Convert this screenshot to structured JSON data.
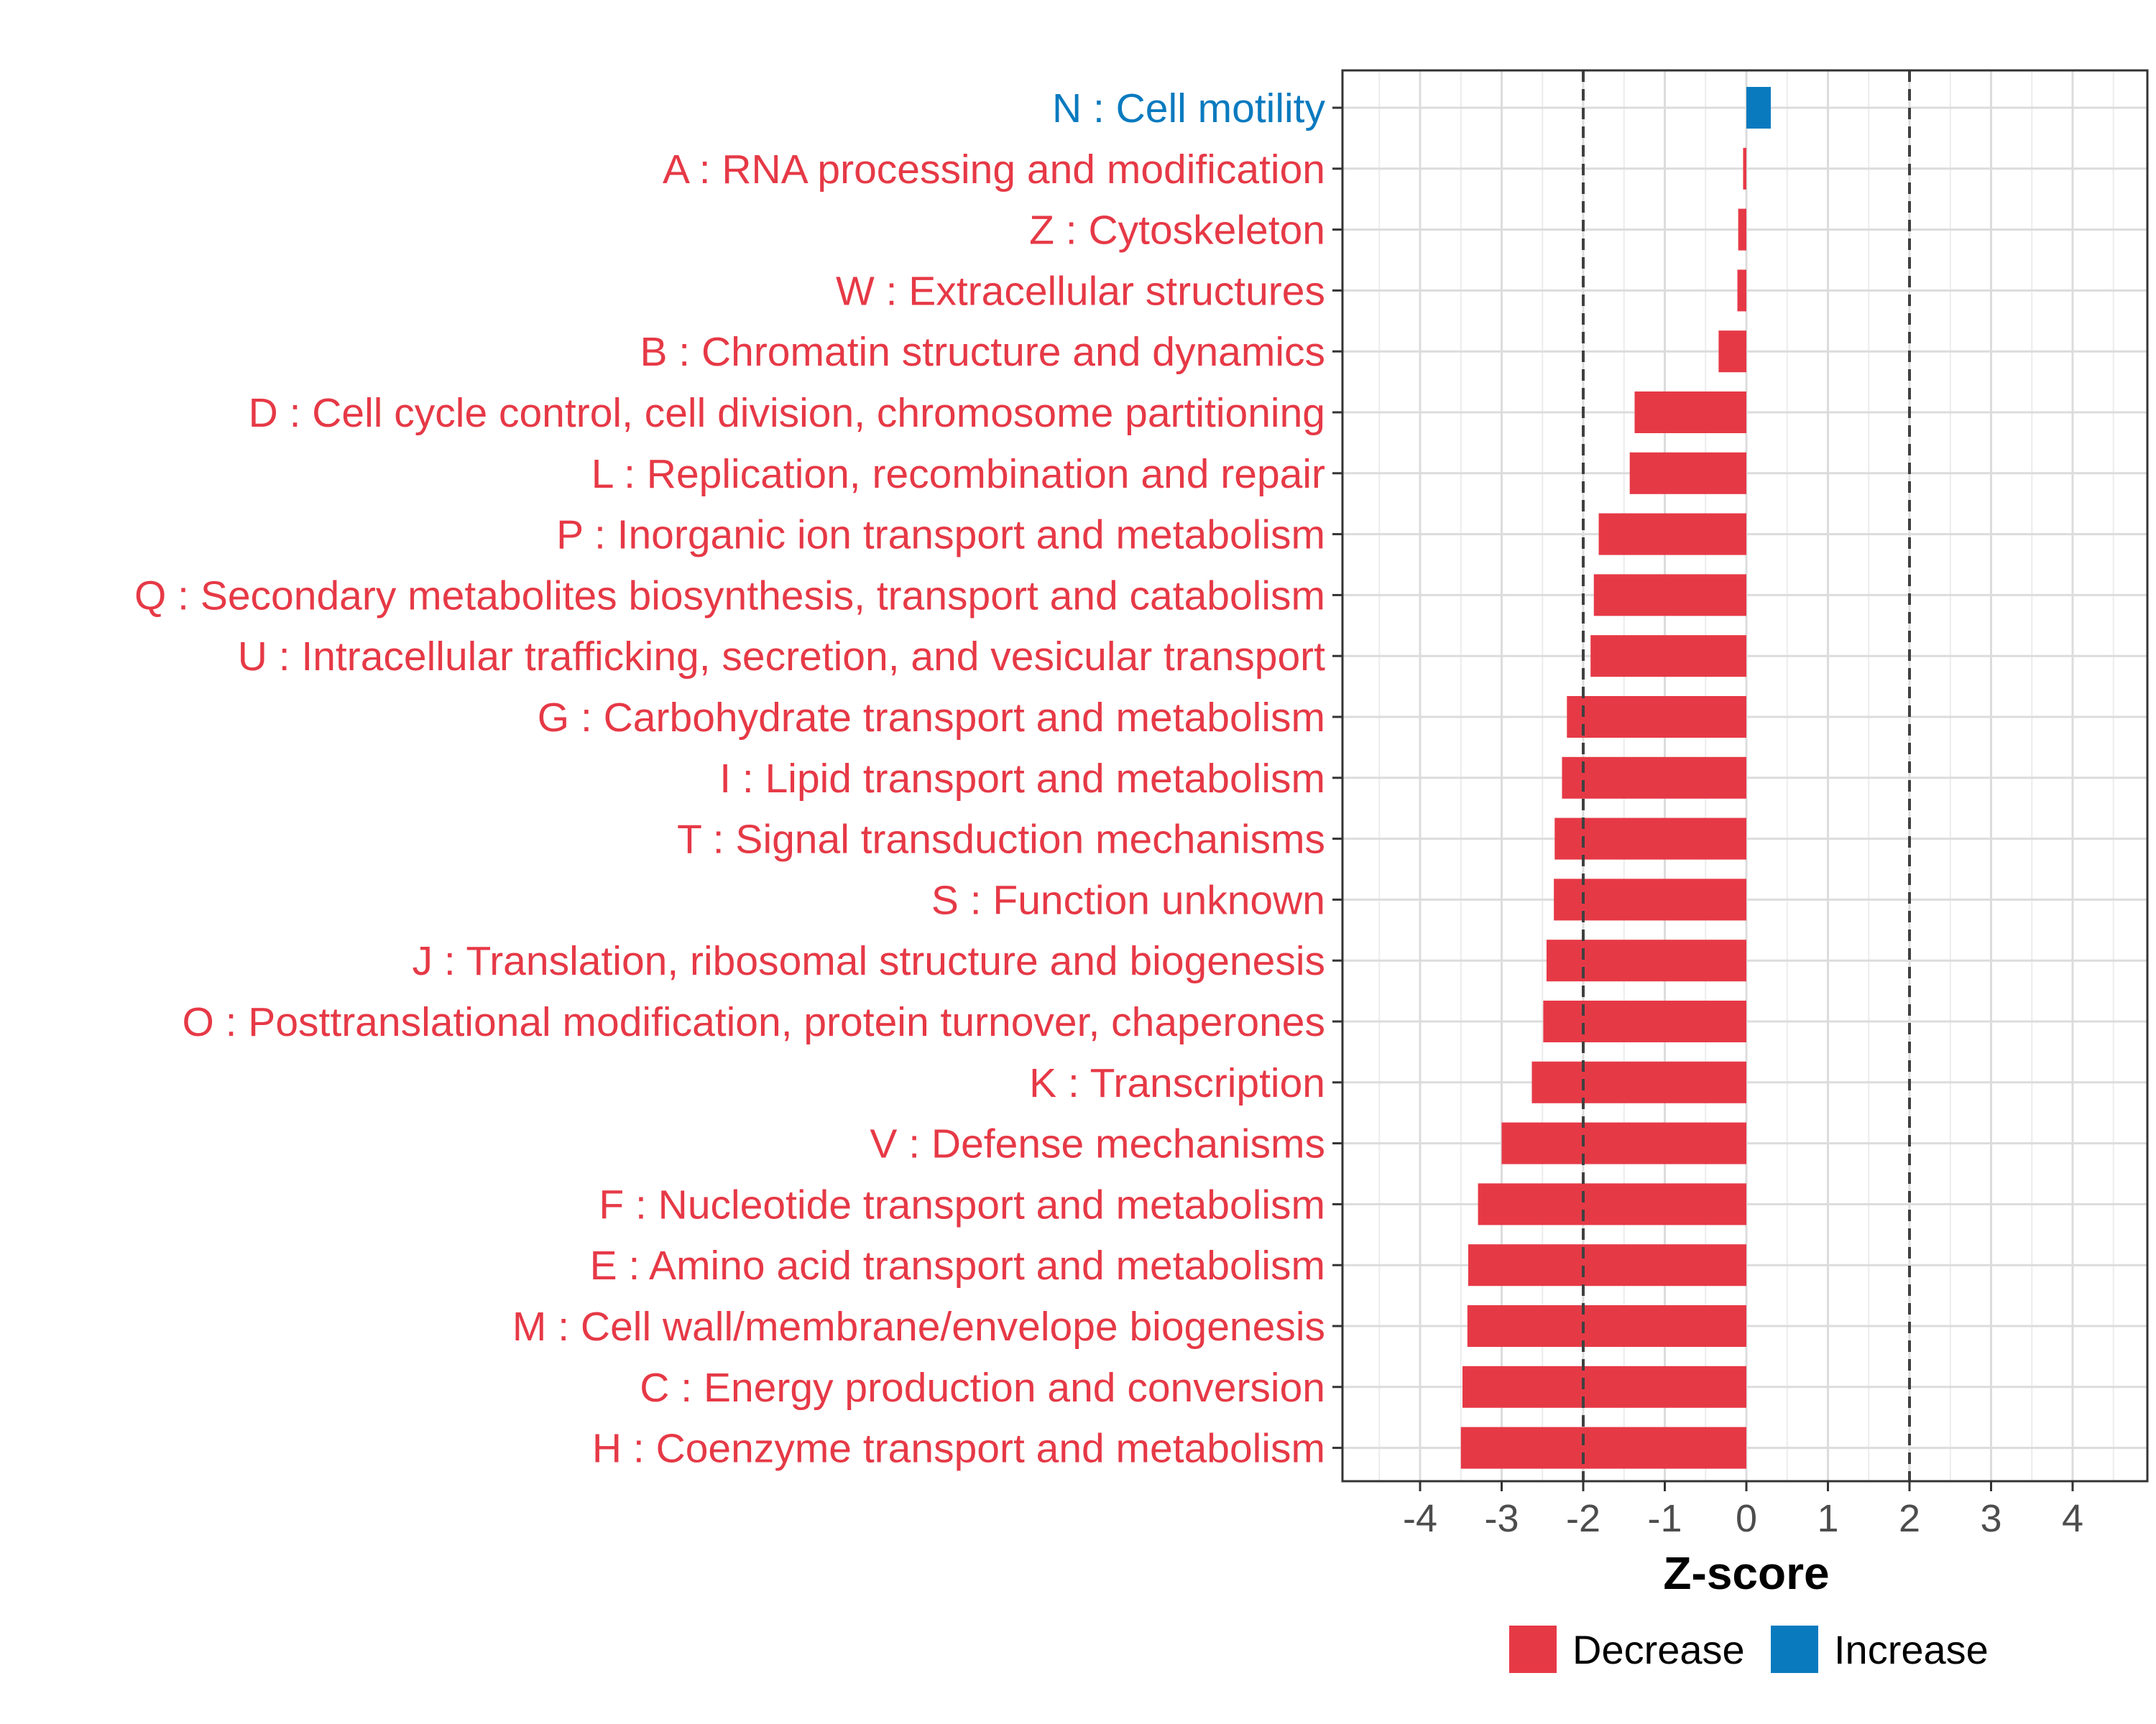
{
  "chart_data": {
    "type": "bar",
    "orientation": "horizontal",
    "title": "",
    "xlabel": "Z-score",
    "ylabel": "",
    "xlim": [
      -5,
      5
    ],
    "xticks": [
      -4,
      -3,
      -2,
      -1,
      0,
      1,
      2,
      3,
      4
    ],
    "xtick_labels": [
      "-4",
      "-3",
      "-2",
      "-1",
      "0",
      "1",
      "2",
      "3",
      "4"
    ],
    "reference_lines": [
      -2,
      2
    ],
    "grid": true,
    "colors": {
      "Decrease": "#e63946",
      "Increase": "#0a7abf"
    },
    "legend": {
      "placement": "bottom",
      "entries": [
        "Decrease",
        "Increase"
      ]
    },
    "categories": [
      "N : Cell motility",
      "A : RNA processing and modification",
      "Z : Cytoskeleton",
      "W : Extracellular structures",
      "B : Chromatin structure and dynamics",
      "D : Cell cycle control, cell division, chromosome partitioning",
      "L : Replication, recombination and repair",
      "P : Inorganic ion transport and metabolism",
      "Q : Secondary metabolites biosynthesis, transport and catabolism",
      "U : Intracellular trafficking, secretion, and vesicular transport",
      "G : Carbohydrate transport and metabolism",
      "I : Lipid transport and metabolism",
      "T : Signal transduction mechanisms",
      "S : Function unknown",
      "J : Translation, ribosomal structure and biogenesis",
      "O : Posttranslational modification, protein turnover, chaperones",
      "K : Transcription",
      "V : Defense mechanisms",
      "F : Nucleotide transport and metabolism",
      "E : Amino acid transport and metabolism",
      "M : Cell wall/membrane/envelope biogenesis",
      "C : Energy production and conversion",
      "H : Coenzyme transport and metabolism"
    ],
    "values": [
      0.3,
      -0.04,
      -0.1,
      -0.11,
      -0.34,
      -1.37,
      -1.43,
      -1.81,
      -1.87,
      -1.91,
      -2.2,
      -2.26,
      -2.35,
      -2.36,
      -2.45,
      -2.49,
      -2.63,
      -3.0,
      -3.29,
      -3.41,
      -3.42,
      -3.48,
      -3.5
    ],
    "direction": [
      "Increase",
      "Decrease",
      "Decrease",
      "Decrease",
      "Decrease",
      "Decrease",
      "Decrease",
      "Decrease",
      "Decrease",
      "Decrease",
      "Decrease",
      "Decrease",
      "Decrease",
      "Decrease",
      "Decrease",
      "Decrease",
      "Decrease",
      "Decrease",
      "Decrease",
      "Decrease",
      "Decrease",
      "Decrease",
      "Decrease"
    ]
  }
}
